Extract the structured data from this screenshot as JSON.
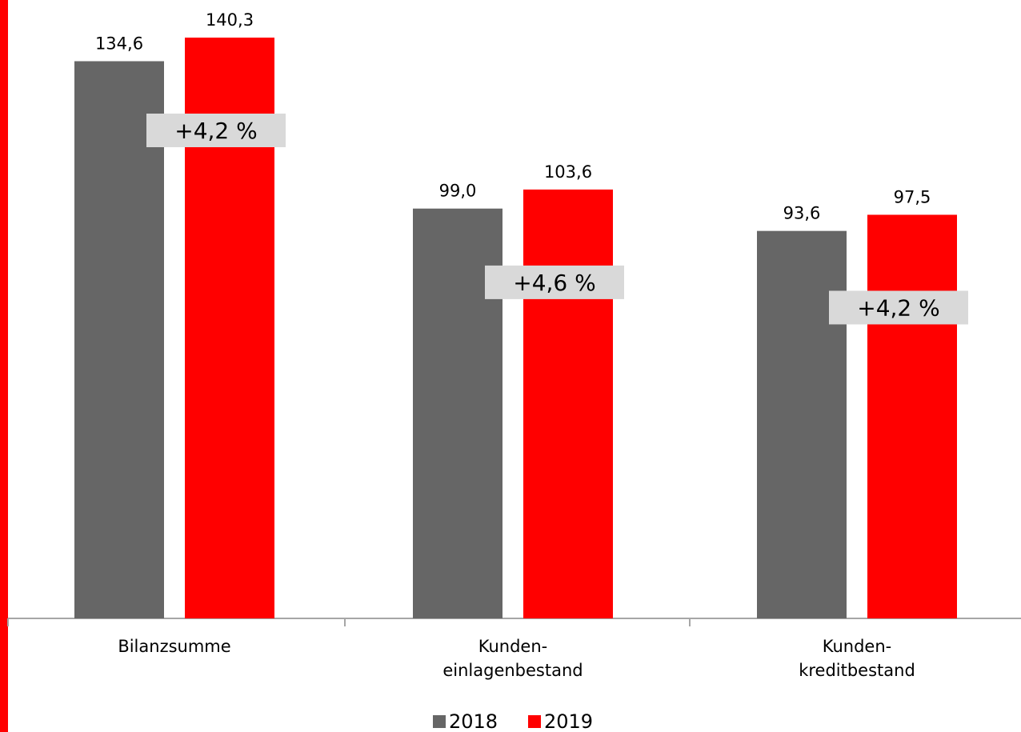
{
  "colors": {
    "accent_strip": "#ff0000",
    "series_2018": "#666666",
    "series_2019": "#ff0000",
    "pct_box": "#d9d9d9",
    "axis": "#a6a6a6"
  },
  "chart_data": {
    "type": "bar",
    "categories": [
      [
        "Bilanzsumme"
      ],
      [
        "Kunden-",
        "einlagenbestand"
      ],
      [
        "Kunden-",
        "kreditbestand"
      ]
    ],
    "series": [
      {
        "name": "2018",
        "values": [
          134.6,
          99.0,
          93.6
        ],
        "labels": [
          "134,6",
          "99,0",
          "93,6"
        ]
      },
      {
        "name": "2019",
        "values": [
          140.3,
          103.6,
          97.5
        ],
        "labels": [
          "140,3",
          "103,6",
          "97,5"
        ]
      }
    ],
    "changes": [
      "+4,2 %",
      "+4,6 %",
      "+4,2 %"
    ],
    "legend": [
      "2018",
      "2019"
    ],
    "legend_position": "bottom",
    "title": "",
    "xlabel": "",
    "ylabel": "",
    "grid": false
  }
}
